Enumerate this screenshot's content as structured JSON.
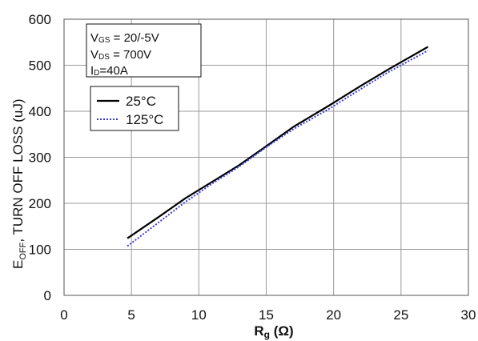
{
  "chart_data": {
    "type": "line",
    "title": "",
    "xlabel": {
      "main": "R",
      "sub": "g",
      "unit": " (Ω)"
    },
    "ylabel": {
      "main": "E",
      "sub": "OFF",
      "rest": ", TURN OFF LOSS (uJ)"
    },
    "xlim": [
      0,
      30
    ],
    "ylim": [
      0,
      600
    ],
    "xticks": [
      0,
      5,
      10,
      15,
      20,
      25,
      30
    ],
    "yticks": [
      0,
      100,
      200,
      300,
      400,
      500,
      600
    ],
    "grid": true,
    "legend_position": "top-left",
    "annotation": [
      {
        "main": "V",
        "sub": "GS",
        "rest": " = 20/-5V"
      },
      {
        "main": "V",
        "sub": "DS",
        "rest": " = 700V"
      },
      {
        "main": "I",
        "sub": "D",
        "rest": "=40A"
      }
    ],
    "series": [
      {
        "name": "25°C",
        "color": "#000000",
        "style": "solid",
        "x": [
          4.7,
          7,
          9,
          11,
          13,
          15,
          17,
          19.7,
          22,
          24,
          27
        ],
        "y": [
          124,
          170,
          211,
          247,
          283,
          324,
          366,
          413,
          455,
          490,
          540
        ]
      },
      {
        "name": "125°C",
        "color": "#3a3ad8",
        "style": "dotted",
        "x": [
          4.7,
          7,
          9,
          11,
          13,
          15,
          17,
          19.7,
          22,
          24,
          27
        ],
        "y": [
          107,
          158,
          203,
          243,
          280,
          322,
          361,
          406,
          448,
          484,
          532
        ]
      }
    ]
  }
}
